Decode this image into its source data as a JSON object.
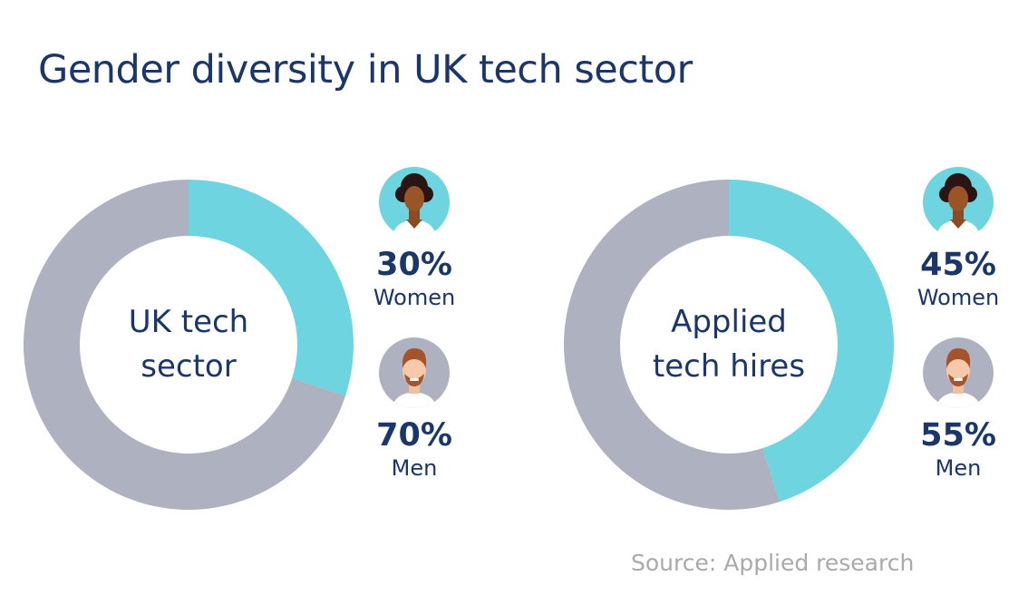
{
  "title": "Gender diversity in UK tech sector",
  "colors": {
    "women": "#6dd4e0",
    "men": "#adb1c0",
    "text": "#1b3668",
    "source": "#a9a9ae"
  },
  "chart_data": [
    {
      "type": "pie",
      "center_label_lines": [
        "UK tech",
        "sector"
      ],
      "slices": [
        {
          "label": "Women",
          "value": 30,
          "display": "30%",
          "icon": "woman-avatar-icon"
        },
        {
          "label": "Men",
          "value": 70,
          "display": "70%",
          "icon": "man-avatar-icon"
        }
      ]
    },
    {
      "type": "pie",
      "center_label_lines": [
        "Applied",
        "tech hires"
      ],
      "slices": [
        {
          "label": "Women",
          "value": 45,
          "display": "45%",
          "icon": "woman-avatar-icon"
        },
        {
          "label": "Men",
          "value": 55,
          "display": "55%",
          "icon": "man-avatar-icon"
        }
      ]
    }
  ],
  "source": "Source: Applied research"
}
